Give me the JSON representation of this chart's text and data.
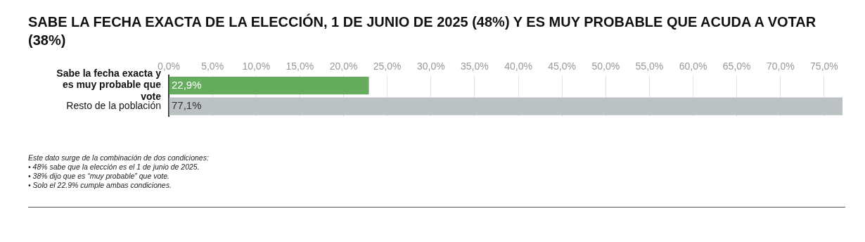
{
  "chart_data": {
    "type": "bar",
    "orientation": "horizontal",
    "title": "SABE LA FECHA EXACTA DE LA ELECCIÓN, 1 DE JUNIO DE 2025 (48%) Y ES MUY PROBABLE QUE ACUDA A VOTAR (38%)",
    "categories": [
      "Sabe la fecha exacta y es muy probable que vote",
      "Resto de la población"
    ],
    "values": [
      22.9,
      77.1
    ],
    "colors": [
      "#66ac5f",
      "#bcc2c4"
    ],
    "value_labels": [
      "22,9%",
      "77,1%"
    ],
    "xlim": [
      0,
      77.1
    ],
    "xticks": [
      {
        "value": 0,
        "label": "0,0%"
      },
      {
        "value": 5,
        "label": "5,0%"
      },
      {
        "value": 10,
        "label": "10,0%"
      },
      {
        "value": 15,
        "label": "15,0%"
      },
      {
        "value": 20,
        "label": "20,0%"
      },
      {
        "value": 25,
        "label": "25,0%"
      },
      {
        "value": 30,
        "label": "30,0%"
      },
      {
        "value": 35,
        "label": "35,0%"
      },
      {
        "value": 40,
        "label": "40,0%"
      },
      {
        "value": 45,
        "label": "45,0%"
      },
      {
        "value": 50,
        "label": "50,0%"
      },
      {
        "value": 55,
        "label": "55,0%"
      },
      {
        "value": 60,
        "label": "60,0%"
      },
      {
        "value": 65,
        "label": "65,0%"
      },
      {
        "value": 70,
        "label": "70,0%"
      },
      {
        "value": 75,
        "label": "75,0%"
      }
    ],
    "grid": "x",
    "legend": false,
    "annotations": [
      "Este dato surge de la combinación de dos condiciones:",
      "• 48% sabe que la elección es el 1 de junio de 2025.",
      "• 38% dijo que es “muy probable” que vote.",
      "• Solo el 22.9% cumple ambas condiciones."
    ]
  }
}
